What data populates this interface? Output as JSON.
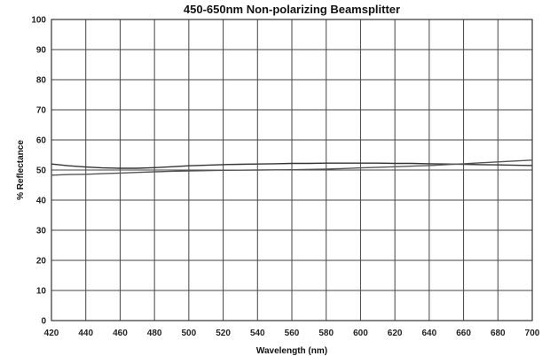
{
  "chart_data": {
    "type": "line",
    "title": "450-650nm Non-polarizing Beamsplitter",
    "xlabel": "Wavelength (nm)",
    "ylabel": "% Reflectance",
    "xlim": [
      420,
      700
    ],
    "ylim": [
      0,
      100
    ],
    "xticks": [
      420,
      440,
      460,
      480,
      500,
      520,
      540,
      560,
      580,
      600,
      620,
      640,
      660,
      680,
      700
    ],
    "yticks": [
      0,
      10,
      20,
      30,
      40,
      50,
      60,
      70,
      80,
      90,
      100
    ],
    "grid": true,
    "legend": "none",
    "series": [
      {
        "x": [
          420,
          430,
          440,
          450,
          460,
          470,
          480,
          490,
          500,
          510,
          520,
          530,
          540,
          550,
          560,
          570,
          580,
          590,
          600,
          610,
          620,
          630,
          640,
          650,
          660,
          670,
          680,
          690,
          700
        ],
        "values": [
          52.0,
          51.4,
          51.0,
          50.7,
          50.6,
          50.6,
          50.8,
          51.1,
          51.4,
          51.6,
          51.8,
          51.9,
          52.0,
          52.1,
          52.2,
          52.2,
          52.3,
          52.3,
          52.3,
          52.3,
          52.2,
          52.2,
          52.1,
          52.0,
          51.9,
          51.8,
          51.7,
          51.6,
          51.5
        ]
      },
      {
        "x": [
          420,
          430,
          440,
          450,
          460,
          470,
          480,
          490,
          500,
          510,
          520,
          530,
          540,
          550,
          560,
          570,
          580,
          590,
          600,
          610,
          620,
          630,
          640,
          650,
          660,
          670,
          680,
          690,
          700
        ],
        "values": [
          48.3,
          48.5,
          48.6,
          48.8,
          49.0,
          49.2,
          49.4,
          49.6,
          49.7,
          49.8,
          49.9,
          49.95,
          50.0,
          50.05,
          50.1,
          50.2,
          50.3,
          50.5,
          50.7,
          50.9,
          51.1,
          51.3,
          51.5,
          51.8,
          52.1,
          52.4,
          52.7,
          53.0,
          53.3
        ]
      }
    ]
  },
  "colors": {
    "series": [
      "#333333",
      "#555555"
    ],
    "grid": "#444444"
  }
}
